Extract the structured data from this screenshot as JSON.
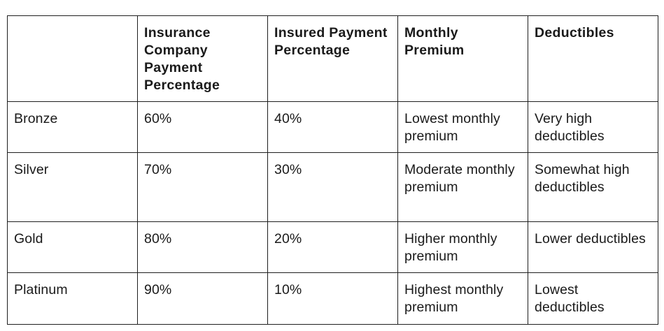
{
  "table": {
    "headers": [
      "",
      "Insurance Company Payment Percentage",
      "Insured Payment Percentage",
      "Monthly Premium",
      "Deductibles"
    ],
    "rows": [
      [
        "Bronze",
        "60%",
        "40%",
        "Lowest monthly premium",
        "Very high deductibles"
      ],
      [
        "Silver",
        "70%",
        "30%",
        "Moderate monthly premium",
        "Somewhat high deductibles"
      ],
      [
        "Gold",
        "80%",
        "20%",
        "Higher monthly premium",
        "Lower deductibles"
      ],
      [
        "Platinum",
        "90%",
        "10%",
        "Highest monthly premium",
        "Lowest deductibles"
      ]
    ]
  }
}
